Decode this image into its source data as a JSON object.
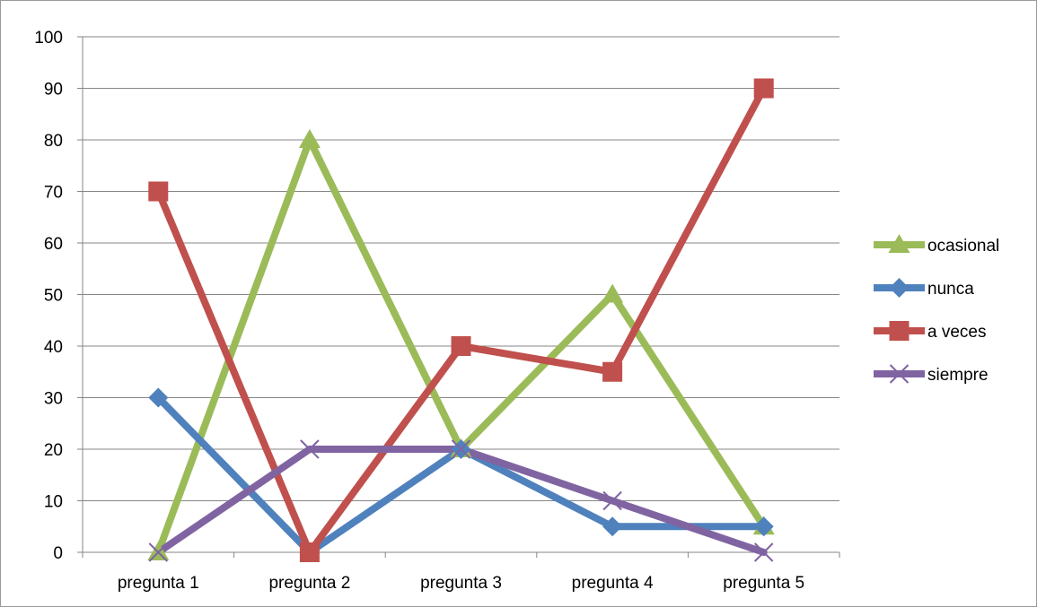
{
  "chart_data": {
    "type": "line",
    "categories": [
      "pregunta 1",
      "pregunta 2",
      "pregunta 3",
      "pregunta 4",
      "pregunta 5"
    ],
    "ylim": [
      0,
      100
    ],
    "yticks": [
      "0",
      "10",
      "20",
      "30",
      "40",
      "50",
      "60",
      "70",
      "80",
      "90",
      "100"
    ],
    "grid": true,
    "legend": "right",
    "series": [
      {
        "name": "ocasional",
        "values": [
          0,
          80,
          20,
          50,
          5
        ],
        "color": "#9BBB59",
        "marker": "triangle"
      },
      {
        "name": "nunca",
        "values": [
          30,
          0,
          20,
          5,
          5
        ],
        "color": "#4F81BD",
        "marker": "diamond"
      },
      {
        "name": "a veces",
        "values": [
          70,
          0,
          40,
          35,
          90
        ],
        "color": "#C0504D",
        "marker": "square"
      },
      {
        "name": "siempre",
        "values": [
          0,
          20,
          20,
          10,
          0
        ],
        "color": "#8064A2",
        "marker": "x"
      }
    ]
  }
}
